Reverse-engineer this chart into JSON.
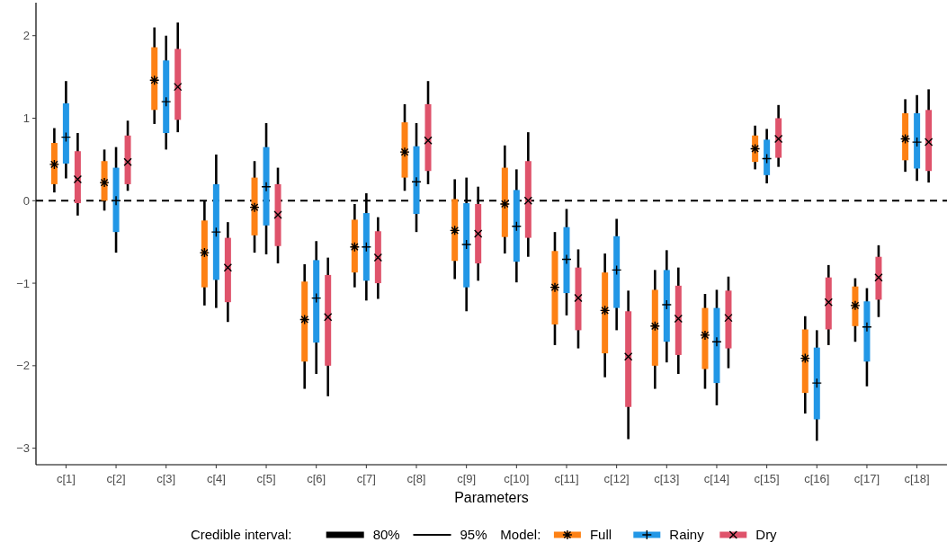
{
  "chart_data": {
    "type": "box",
    "xlabel": "Parameters",
    "legend_title": "Model:",
    "legend": "bottom",
    "annotations": [
      "Credible interval:",
      "80%",
      "95%"
    ],
    "categories": [
      "c[1]",
      "c[2]",
      "c[3]",
      "c[4]",
      "c[5]",
      "c[6]",
      "c[7]",
      "c[8]",
      "c[9]",
      "c[10]",
      "c[11]",
      "c[12]",
      "c[13]",
      "c[14]",
      "c[15]",
      "c[16]",
      "c[17]",
      "c[18]"
    ],
    "ylim": [
      -3.2,
      2.4
    ],
    "yticks": [
      {
        "value": -3,
        "label": "−3"
      },
      {
        "value": -2,
        "label": "−2"
      },
      {
        "value": -1,
        "label": "−1"
      },
      0,
      1,
      2
    ],
    "grid": false,
    "ref_lines": [
      {
        "axis": "y",
        "value": 0,
        "line_style": "dashed",
        "color": "#000000"
      }
    ],
    "series": [
      {
        "name": "Full",
        "color": "#fd8114",
        "boxes": [
          {
            "low": 0.1,
            "q1": 0.2,
            "median": 0.44,
            "q3": 0.7,
            "high": 0.88
          },
          {
            "low": -0.12,
            "q1": 0.0,
            "median": 0.22,
            "q3": 0.48,
            "high": 0.62
          },
          {
            "low": 0.93,
            "q1": 1.1,
            "median": 1.46,
            "q3": 1.86,
            "high": 2.1
          },
          {
            "low": -1.27,
            "q1": -1.05,
            "median": -0.63,
            "q3": -0.24,
            "high": 0.0
          },
          {
            "low": -0.63,
            "q1": -0.42,
            "median": -0.08,
            "q3": 0.28,
            "high": 0.48
          },
          {
            "low": -2.28,
            "q1": -1.95,
            "median": -1.44,
            "q3": -0.98,
            "high": -0.77
          },
          {
            "low": -1.05,
            "q1": -0.87,
            "median": -0.56,
            "q3": -0.23,
            "high": -0.04
          },
          {
            "low": 0.12,
            "q1": 0.28,
            "median": 0.59,
            "q3": 0.95,
            "high": 1.17
          },
          {
            "low": -0.95,
            "q1": -0.73,
            "median": -0.36,
            "q3": 0.02,
            "high": 0.26
          },
          {
            "low": -0.64,
            "q1": -0.44,
            "median": -0.04,
            "q3": 0.4,
            "high": 0.67
          },
          {
            "low": -1.75,
            "q1": -1.5,
            "median": -1.05,
            "q3": -0.61,
            "high": -0.38
          },
          {
            "low": -2.14,
            "q1": -1.85,
            "median": -1.33,
            "q3": -0.87,
            "high": -0.64
          },
          {
            "low": -2.28,
            "q1": -2.0,
            "median": -1.52,
            "q3": -1.08,
            "high": -0.84
          },
          {
            "low": -2.28,
            "q1": -2.04,
            "median": -1.63,
            "q3": -1.3,
            "high": -1.13
          },
          {
            "low": 0.38,
            "q1": 0.47,
            "median": 0.63,
            "q3": 0.79,
            "high": 0.91
          },
          {
            "low": -2.58,
            "q1": -2.33,
            "median": -1.91,
            "q3": -1.56,
            "high": -1.4
          },
          {
            "low": -1.71,
            "q1": -1.52,
            "median": -1.27,
            "q3": -1.04,
            "high": -0.94
          },
          {
            "low": 0.35,
            "q1": 0.49,
            "median": 0.75,
            "q3": 1.06,
            "high": 1.23
          }
        ]
      },
      {
        "name": "Rainy",
        "color": "#2297e6",
        "boxes": [
          {
            "low": 0.27,
            "q1": 0.45,
            "median": 0.77,
            "q3": 1.18,
            "high": 1.45
          },
          {
            "low": -0.63,
            "q1": -0.38,
            "median": 0.0,
            "q3": 0.4,
            "high": 0.65
          },
          {
            "low": 0.62,
            "q1": 0.82,
            "median": 1.2,
            "q3": 1.7,
            "high": 2.0
          },
          {
            "low": -1.3,
            "q1": -0.96,
            "median": -0.38,
            "q3": 0.2,
            "high": 0.56
          },
          {
            "low": -0.65,
            "q1": -0.3,
            "median": 0.17,
            "q3": 0.65,
            "high": 0.94
          },
          {
            "low": -2.1,
            "q1": -1.72,
            "median": -1.18,
            "q3": -0.72,
            "high": -0.49
          },
          {
            "low": -1.21,
            "q1": -0.97,
            "median": -0.56,
            "q3": -0.15,
            "high": 0.09
          },
          {
            "low": -0.38,
            "q1": -0.16,
            "median": 0.23,
            "q3": 0.66,
            "high": 0.94
          },
          {
            "low": -1.34,
            "q1": -1.05,
            "median": -0.53,
            "q3": -0.03,
            "high": 0.28
          },
          {
            "low": -0.99,
            "q1": -0.74,
            "median": -0.31,
            "q3": 0.13,
            "high": 0.38
          },
          {
            "low": -1.39,
            "q1": -1.12,
            "median": -0.71,
            "q3": -0.32,
            "high": -0.1
          },
          {
            "low": -1.57,
            "q1": -1.3,
            "median": -0.84,
            "q3": -0.43,
            "high": -0.22
          },
          {
            "low": -1.96,
            "q1": -1.71,
            "median": -1.26,
            "q3": -0.84,
            "high": -0.6
          },
          {
            "low": -2.48,
            "q1": -2.21,
            "median": -1.71,
            "q3": -1.3,
            "high": -1.08
          },
          {
            "low": 0.21,
            "q1": 0.31,
            "median": 0.51,
            "q3": 0.74,
            "high": 0.87
          },
          {
            "low": -2.91,
            "q1": -2.65,
            "median": -2.21,
            "q3": -1.78,
            "high": -1.57
          },
          {
            "low": -2.25,
            "q1": -1.95,
            "median": -1.53,
            "q3": -1.22,
            "high": -1.06
          },
          {
            "low": 0.24,
            "q1": 0.39,
            "median": 0.71,
            "q3": 1.06,
            "high": 1.28
          }
        ]
      },
      {
        "name": "Dry",
        "color": "#df536b",
        "boxes": [
          {
            "low": -0.18,
            "q1": -0.03,
            "median": 0.26,
            "q3": 0.6,
            "high": 0.82
          },
          {
            "low": 0.12,
            "q1": 0.2,
            "median": 0.47,
            "q3": 0.79,
            "high": 0.97
          },
          {
            "low": 0.83,
            "q1": 0.98,
            "median": 1.38,
            "q3": 1.84,
            "high": 2.16
          },
          {
            "low": -1.47,
            "q1": -1.23,
            "median": -0.81,
            "q3": -0.45,
            "high": -0.26
          },
          {
            "low": -0.76,
            "q1": -0.55,
            "median": -0.17,
            "q3": 0.2,
            "high": 0.4
          },
          {
            "low": -2.37,
            "q1": -2.0,
            "median": -1.41,
            "q3": -0.9,
            "high": -0.69
          },
          {
            "low": -1.19,
            "q1": -1.0,
            "median": -0.69,
            "q3": -0.37,
            "high": -0.2
          },
          {
            "low": 0.2,
            "q1": 0.36,
            "median": 0.73,
            "q3": 1.17,
            "high": 1.45
          },
          {
            "low": -0.97,
            "q1": -0.76,
            "median": -0.4,
            "q3": -0.04,
            "high": 0.17
          },
          {
            "low": -0.68,
            "q1": -0.45,
            "median": 0.0,
            "q3": 0.48,
            "high": 0.83
          },
          {
            "low": -1.79,
            "q1": -1.57,
            "median": -1.18,
            "q3": -0.81,
            "high": -0.59
          },
          {
            "low": -2.89,
            "q1": -2.5,
            "median": -1.89,
            "q3": -1.34,
            "high": -1.09
          },
          {
            "low": -2.1,
            "q1": -1.87,
            "median": -1.43,
            "q3": -1.03,
            "high": -0.81
          },
          {
            "low": -2.03,
            "q1": -1.79,
            "median": -1.42,
            "q3": -1.09,
            "high": -0.92
          },
          {
            "low": 0.41,
            "q1": 0.52,
            "median": 0.75,
            "q3": 1.0,
            "high": 1.16
          },
          {
            "low": -1.75,
            "q1": -1.56,
            "median": -1.23,
            "q3": -0.93,
            "high": -0.78
          },
          {
            "low": -1.41,
            "q1": -1.2,
            "median": -0.93,
            "q3": -0.68,
            "high": -0.54
          },
          {
            "low": 0.22,
            "q1": 0.36,
            "median": 0.71,
            "q3": 1.1,
            "high": 1.35
          }
        ]
      }
    ]
  }
}
